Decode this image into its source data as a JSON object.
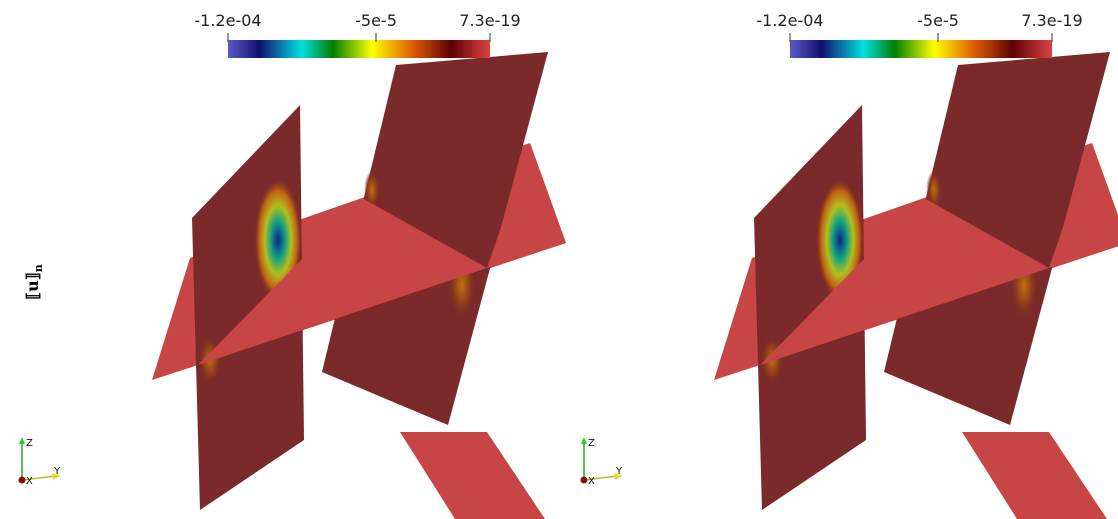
{
  "side_label": {
    "text": "⟦u⟧",
    "subscript": "n"
  },
  "panels": [
    {
      "colorbar": {
        "labels": [
          "-1.2e-04",
          "-5e-5",
          "7.3e-19"
        ]
      },
      "axes": {
        "z": "Z",
        "x": "X",
        "y": "Y"
      }
    },
    {
      "colorbar": {
        "labels": [
          "-1.2e-04",
          "-5e-5",
          "7.3e-19"
        ]
      },
      "axes": {
        "z": "Z",
        "x": "X",
        "y": "Y"
      }
    }
  ]
}
